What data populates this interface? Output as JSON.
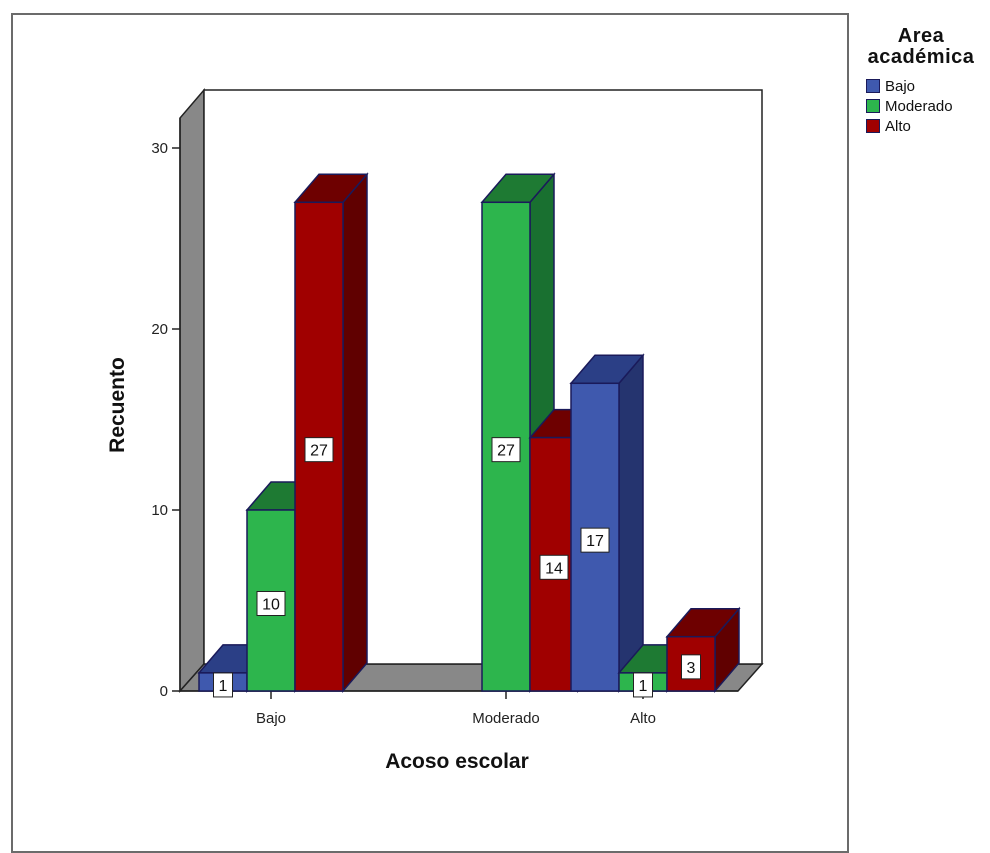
{
  "chart_data": {
    "type": "bar",
    "style": "3d-clustered",
    "categories": [
      "Bajo",
      "Moderado",
      "Alto"
    ],
    "series": [
      {
        "name": "Bajo",
        "values": [
          1,
          null,
          17
        ],
        "color": "#3f59ae",
        "top_color": "#2b3f86",
        "side_color": "#25346f"
      },
      {
        "name": "Moderado",
        "values": [
          10,
          27,
          1
        ],
        "color": "#2db54d",
        "top_color": "#1e7a33",
        "side_color": "#197030"
      },
      {
        "name": "Alto",
        "values": [
          27,
          14,
          3
        ],
        "color": "#a00000",
        "top_color": "#6e0000",
        "side_color": "#600000"
      }
    ],
    "data_labels": [
      {
        "series": 0,
        "category": 0,
        "text": "1"
      },
      {
        "series": 1,
        "category": 0,
        "text": "10"
      },
      {
        "series": 2,
        "category": 0,
        "text": "27"
      },
      {
        "series": 1,
        "category": 1,
        "text": "27"
      },
      {
        "series": 2,
        "category": 1,
        "text": "14"
      },
      {
        "series": 0,
        "category": 2,
        "text": "17"
      },
      {
        "series": 1,
        "category": 2,
        "text": "1"
      },
      {
        "series": 2,
        "category": 2,
        "text": "3"
      }
    ],
    "y_ticks": [
      "0",
      "10",
      "20",
      "30"
    ],
    "y_tick_values": [
      0,
      10,
      20,
      30
    ],
    "ylim": [
      0,
      33
    ],
    "xlabel": "Acoso escolar",
    "ylabel": "Recuento",
    "legend_title": "Area académica",
    "legend_title_lines": [
      "Area",
      "académica"
    ],
    "legend_position": "top-right",
    "grid": false,
    "wall_color": "#888888",
    "floor_color": "#888888"
  }
}
